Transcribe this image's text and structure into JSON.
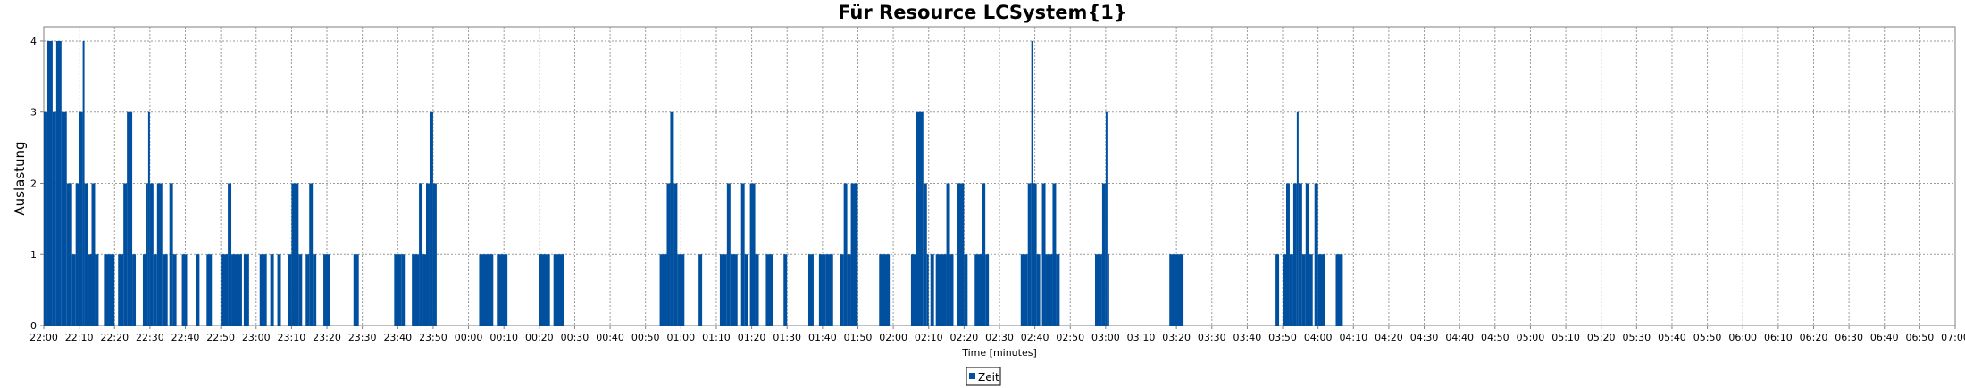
{
  "chart_data": {
    "type": "bar",
    "title": "Für Resource LCSystem{1}",
    "xlabel": "Time [minutes]",
    "ylabel": "Auslastung",
    "ylim": [
      0,
      4.2
    ],
    "yticks": [
      0,
      1,
      2,
      3,
      4
    ],
    "xticks": [
      "22:00",
      "22:10",
      "22:20",
      "22:30",
      "22:40",
      "22:50",
      "23:00",
      "23:10",
      "23:20",
      "23:30",
      "23:40",
      "23:50",
      "00:00",
      "00:10",
      "00:20",
      "00:30",
      "00:40",
      "00:50",
      "01:00",
      "01:10",
      "01:20",
      "01:30",
      "01:40",
      "01:50",
      "02:00",
      "02:10",
      "02:20",
      "02:30",
      "02:40",
      "02:50",
      "03:00",
      "03:10",
      "03:20",
      "03:30",
      "03:40",
      "03:50",
      "04:00",
      "04:10",
      "04:20",
      "04:30",
      "04:40",
      "04:50",
      "05:00",
      "05:10",
      "05:20",
      "05:30",
      "05:40",
      "05:50",
      "06:00",
      "06:10",
      "06:20",
      "06:30",
      "06:40",
      "06:50",
      "07:00"
    ],
    "xlim_minutes": [
      0,
      540
    ],
    "grid": true,
    "legend_position": "bottom-center",
    "series": [
      {
        "name": "Zeit",
        "color": "#00509f",
        "segments": [
          {
            "start": 0,
            "end": 1,
            "value": 3
          },
          {
            "start": 1,
            "end": 2.5,
            "value": 4
          },
          {
            "start": 2.5,
            "end": 3.5,
            "value": 3
          },
          {
            "start": 3.5,
            "end": 5,
            "value": 4
          },
          {
            "start": 5,
            "end": 6.5,
            "value": 3
          },
          {
            "start": 6.5,
            "end": 8,
            "value": 2
          },
          {
            "start": 8,
            "end": 9,
            "value": 1
          },
          {
            "start": 9,
            "end": 10,
            "value": 2
          },
          {
            "start": 10,
            "end": 11,
            "value": 3
          },
          {
            "start": 11,
            "end": 11.5,
            "value": 4
          },
          {
            "start": 11.5,
            "end": 12.5,
            "value": 2
          },
          {
            "start": 12.5,
            "end": 13.5,
            "value": 1
          },
          {
            "start": 13.5,
            "end": 14.5,
            "value": 2
          },
          {
            "start": 14.5,
            "end": 15.5,
            "value": 1
          },
          {
            "start": 17,
            "end": 20,
            "value": 1
          },
          {
            "start": 21,
            "end": 22.5,
            "value": 1
          },
          {
            "start": 22.5,
            "end": 23.5,
            "value": 2
          },
          {
            "start": 23.5,
            "end": 25,
            "value": 3
          },
          {
            "start": 25,
            "end": 26,
            "value": 1
          },
          {
            "start": 28,
            "end": 29,
            "value": 1
          },
          {
            "start": 29,
            "end": 29.5,
            "value": 2
          },
          {
            "start": 29.5,
            "end": 30,
            "value": 3
          },
          {
            "start": 30,
            "end": 31,
            "value": 2
          },
          {
            "start": 31,
            "end": 32,
            "value": 1
          },
          {
            "start": 32,
            "end": 33.5,
            "value": 2
          },
          {
            "start": 33.5,
            "end": 35,
            "value": 1
          },
          {
            "start": 35.5,
            "end": 36.5,
            "value": 2
          },
          {
            "start": 36.5,
            "end": 37.5,
            "value": 1
          },
          {
            "start": 39,
            "end": 40.5,
            "value": 1
          },
          {
            "start": 43,
            "end": 44,
            "value": 1
          },
          {
            "start": 46,
            "end": 47.5,
            "value": 1
          },
          {
            "start": 50,
            "end": 52,
            "value": 1
          },
          {
            "start": 52,
            "end": 53,
            "value": 2
          },
          {
            "start": 53,
            "end": 56,
            "value": 1
          },
          {
            "start": 56.5,
            "end": 58,
            "value": 1
          },
          {
            "start": 61,
            "end": 63,
            "value": 1
          },
          {
            "start": 64,
            "end": 65,
            "value": 1
          },
          {
            "start": 66,
            "end": 67,
            "value": 1
          },
          {
            "start": 69,
            "end": 70,
            "value": 1
          },
          {
            "start": 70,
            "end": 72,
            "value": 2
          },
          {
            "start": 72,
            "end": 73,
            "value": 1
          },
          {
            "start": 74,
            "end": 75,
            "value": 1
          },
          {
            "start": 75,
            "end": 76,
            "value": 2
          },
          {
            "start": 76,
            "end": 77,
            "value": 1
          },
          {
            "start": 79,
            "end": 81,
            "value": 1
          },
          {
            "start": 87.5,
            "end": 89,
            "value": 1
          },
          {
            "start": 99,
            "end": 101,
            "value": 1
          },
          {
            "start": 101,
            "end": 102,
            "value": 1
          },
          {
            "start": 104,
            "end": 106,
            "value": 1
          },
          {
            "start": 106,
            "end": 107,
            "value": 2
          },
          {
            "start": 107,
            "end": 108,
            "value": 1
          },
          {
            "start": 108,
            "end": 109,
            "value": 2
          },
          {
            "start": 109,
            "end": 110,
            "value": 3
          },
          {
            "start": 110,
            "end": 111,
            "value": 2
          },
          {
            "start": 123,
            "end": 127,
            "value": 1
          },
          {
            "start": 128,
            "end": 131,
            "value": 1
          },
          {
            "start": 140,
            "end": 143,
            "value": 1
          },
          {
            "start": 144,
            "end": 147,
            "value": 1
          },
          {
            "start": 174,
            "end": 176,
            "value": 1
          },
          {
            "start": 176,
            "end": 177,
            "value": 2
          },
          {
            "start": 177,
            "end": 178,
            "value": 3
          },
          {
            "start": 178,
            "end": 179,
            "value": 2
          },
          {
            "start": 179,
            "end": 181,
            "value": 1
          },
          {
            "start": 185,
            "end": 186,
            "value": 1
          },
          {
            "start": 191,
            "end": 193,
            "value": 1
          },
          {
            "start": 193,
            "end": 194,
            "value": 2
          },
          {
            "start": 194,
            "end": 196,
            "value": 1
          },
          {
            "start": 197,
            "end": 198,
            "value": 2
          },
          {
            "start": 198,
            "end": 199,
            "value": 1
          },
          {
            "start": 199.5,
            "end": 201,
            "value": 2
          },
          {
            "start": 201,
            "end": 202,
            "value": 1
          },
          {
            "start": 204,
            "end": 206,
            "value": 1
          },
          {
            "start": 209,
            "end": 210,
            "value": 1
          },
          {
            "start": 216,
            "end": 217.5,
            "value": 1
          },
          {
            "start": 219,
            "end": 221,
            "value": 1
          },
          {
            "start": 221,
            "end": 223,
            "value": 1
          },
          {
            "start": 225,
            "end": 226,
            "value": 1
          },
          {
            "start": 226,
            "end": 227,
            "value": 2
          },
          {
            "start": 227,
            "end": 228,
            "value": 1
          },
          {
            "start": 228,
            "end": 230,
            "value": 2
          },
          {
            "start": 236,
            "end": 239,
            "value": 1
          },
          {
            "start": 245,
            "end": 246.5,
            "value": 1
          },
          {
            "start": 246.5,
            "end": 248.5,
            "value": 3
          },
          {
            "start": 248.5,
            "end": 249.5,
            "value": 2
          },
          {
            "start": 249.5,
            "end": 250,
            "value": 1
          },
          {
            "start": 250.5,
            "end": 251.5,
            "value": 1
          },
          {
            "start": 252,
            "end": 255,
            "value": 1
          },
          {
            "start": 255,
            "end": 256,
            "value": 2
          },
          {
            "start": 256,
            "end": 257,
            "value": 1
          },
          {
            "start": 258,
            "end": 260,
            "value": 2
          },
          {
            "start": 260,
            "end": 261,
            "value": 1
          },
          {
            "start": 263,
            "end": 265,
            "value": 1
          },
          {
            "start": 265,
            "end": 266,
            "value": 2
          },
          {
            "start": 266,
            "end": 267,
            "value": 1
          },
          {
            "start": 276,
            "end": 278,
            "value": 1
          },
          {
            "start": 278,
            "end": 279,
            "value": 2
          },
          {
            "start": 279,
            "end": 279.5,
            "value": 4
          },
          {
            "start": 279.5,
            "end": 280.5,
            "value": 2
          },
          {
            "start": 280.5,
            "end": 281.5,
            "value": 1
          },
          {
            "start": 282,
            "end": 283,
            "value": 2
          },
          {
            "start": 283,
            "end": 285,
            "value": 1
          },
          {
            "start": 285,
            "end": 286,
            "value": 2
          },
          {
            "start": 286,
            "end": 287,
            "value": 1
          },
          {
            "start": 297,
            "end": 299,
            "value": 1
          },
          {
            "start": 299,
            "end": 300,
            "value": 2
          },
          {
            "start": 300,
            "end": 300.5,
            "value": 3
          },
          {
            "start": 300.5,
            "end": 301,
            "value": 1
          },
          {
            "start": 318,
            "end": 322,
            "value": 1
          },
          {
            "start": 348,
            "end": 349,
            "value": 1
          },
          {
            "start": 350,
            "end": 351,
            "value": 1
          },
          {
            "start": 351,
            "end": 352,
            "value": 2
          },
          {
            "start": 352,
            "end": 353,
            "value": 1
          },
          {
            "start": 353,
            "end": 354,
            "value": 2
          },
          {
            "start": 354,
            "end": 354.5,
            "value": 3
          },
          {
            "start": 354.5,
            "end": 355.5,
            "value": 2
          },
          {
            "start": 355.5,
            "end": 356.5,
            "value": 1
          },
          {
            "start": 356.5,
            "end": 357.5,
            "value": 2
          },
          {
            "start": 357.5,
            "end": 358.5,
            "value": 1
          },
          {
            "start": 359,
            "end": 360,
            "value": 2
          },
          {
            "start": 360,
            "end": 362,
            "value": 1
          },
          {
            "start": 365,
            "end": 367,
            "value": 1
          }
        ]
      }
    ]
  },
  "legend": {
    "label": "Zeit"
  }
}
